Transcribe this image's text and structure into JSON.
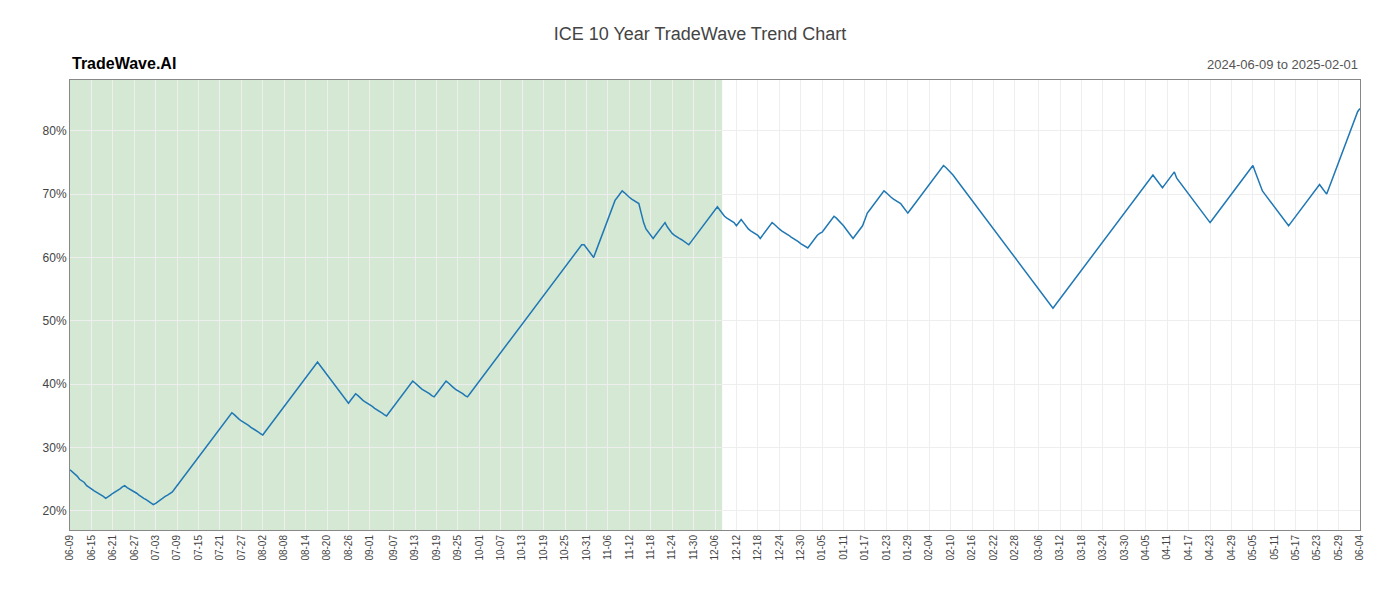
{
  "chart_data": {
    "type": "line",
    "title": "ICE 10 Year TradeWave Trend Chart",
    "subtitle": "2024-06-09 to 2025-02-01",
    "annotations": [
      {
        "text": "TradeWave.AI"
      }
    ],
    "color": "#1f77b4",
    "grid": true,
    "ylim": [
      17,
      88
    ],
    "yticks": [
      {
        "value": 20,
        "label": "20%"
      },
      {
        "value": 30,
        "label": "30%"
      },
      {
        "value": 40,
        "label": "40%"
      },
      {
        "value": 50,
        "label": "50%"
      },
      {
        "value": 60,
        "label": "60%"
      },
      {
        "value": 70,
        "label": "70%"
      },
      {
        "value": 80,
        "label": "80%"
      }
    ],
    "shaded_region": {
      "start": 0,
      "end": 274,
      "color": "#d4e8d4"
    },
    "categories": [
      "06-09",
      null,
      null,
      null,
      null,
      null,
      null,
      null,
      null,
      "06-15",
      null,
      null,
      null,
      null,
      null,
      null,
      null,
      null,
      "06-21",
      null,
      null,
      null,
      null,
      null,
      null,
      null,
      null,
      "06-27",
      null,
      null,
      null,
      null,
      null,
      null,
      null,
      null,
      "07-03",
      null,
      null,
      null,
      null,
      null,
      null,
      null,
      null,
      "07-09",
      null,
      null,
      null,
      null,
      null,
      null,
      null,
      null,
      "07-15",
      null,
      null,
      null,
      null,
      null,
      null,
      null,
      null,
      "07-21",
      null,
      null,
      null,
      null,
      null,
      null,
      null,
      null,
      "07-27",
      null,
      null,
      null,
      null,
      null,
      null,
      null,
      null,
      "08-02",
      null,
      null,
      null,
      null,
      null,
      null,
      null,
      null,
      "08-08",
      null,
      null,
      null,
      null,
      null,
      null,
      null,
      null,
      "08-14",
      null,
      null,
      null,
      null,
      null,
      null,
      null,
      null,
      "08-20",
      null,
      null,
      null,
      null,
      null,
      null,
      null,
      null,
      "08-26",
      null,
      null,
      null,
      null,
      null,
      null,
      null,
      null,
      "09-01",
      null,
      null,
      null,
      null,
      null,
      null,
      null,
      null,
      null,
      "09-07",
      null,
      null,
      null,
      null,
      null,
      null,
      null,
      null,
      "09-13",
      null,
      null,
      null,
      null,
      null,
      null,
      null,
      null,
      "09-19",
      null,
      null,
      null,
      null,
      null,
      null,
      null,
      null,
      "09-25",
      null,
      null,
      null,
      null,
      null,
      null,
      null,
      null,
      "10-01",
      null,
      null,
      null,
      null,
      null,
      null,
      null,
      null,
      "10-07",
      null,
      null,
      null,
      null,
      null,
      null,
      null,
      null,
      "10-13",
      null,
      null,
      null,
      null,
      null,
      null,
      null,
      null,
      "10-19",
      null,
      null,
      null,
      null,
      null,
      null,
      null,
      null,
      "10-25",
      null,
      null,
      null,
      null,
      null,
      null,
      null,
      null,
      "10-31",
      null,
      null,
      null,
      null,
      null,
      null,
      null,
      null,
      "11-06",
      null,
      null,
      null,
      null,
      null,
      null,
      null,
      null,
      "11-12",
      null,
      null,
      null,
      null,
      null,
      null,
      null,
      null,
      "11-18",
      null,
      null,
      null,
      null,
      null,
      null,
      null,
      null,
      "11-24",
      null,
      null,
      null,
      null,
      null,
      null,
      null,
      null,
      "11-30",
      null,
      null,
      null,
      null,
      null,
      null,
      null,
      null,
      "12-06",
      null,
      null,
      null,
      null,
      null,
      null,
      null,
      null,
      "12-12",
      null,
      null,
      null,
      null,
      null,
      null,
      null,
      null,
      "12-18",
      null,
      null,
      null,
      null,
      null,
      null,
      null,
      null,
      "12-24",
      null,
      null,
      null,
      null,
      null,
      null,
      null,
      null,
      "12-30",
      null,
      null,
      null,
      null,
      null,
      null,
      null,
      null,
      "01-05",
      null,
      null,
      null,
      null,
      null,
      null,
      null,
      null,
      "01-11",
      null,
      null,
      null,
      null,
      null,
      null,
      null,
      null,
      "01-17",
      null,
      null,
      null,
      null,
      null,
      null,
      null,
      null,
      "01-23",
      null,
      null,
      null,
      null,
      null,
      null,
      null,
      null,
      "01-29",
      null,
      null,
      null,
      null,
      null,
      null,
      null,
      null,
      "02-04",
      null,
      null,
      null,
      null,
      null,
      null,
      null,
      null,
      "02-10",
      null,
      null,
      null,
      null,
      null,
      null,
      null,
      null,
      "02-16",
      null,
      null,
      null,
      null,
      null,
      null,
      null,
      null,
      "02-22",
      null,
      null,
      null,
      null,
      null,
      null,
      null,
      null,
      "02-28",
      null,
      null,
      null,
      null,
      null,
      null,
      null,
      null,
      null,
      "03-06",
      null,
      null,
      null,
      null,
      null,
      null,
      null,
      null,
      "03-12",
      null,
      null,
      null,
      null,
      null,
      null,
      null,
      null,
      "03-18",
      null,
      null,
      null,
      null,
      null,
      null,
      null,
      null,
      "03-24",
      null,
      null,
      null,
      null,
      null,
      null,
      null,
      null,
      "03-30",
      null,
      null,
      null,
      null,
      null,
      null,
      null,
      null,
      "04-05",
      null,
      null,
      null,
      null,
      null,
      null,
      null,
      null,
      "04-11",
      null,
      null,
      null,
      null,
      null,
      null,
      null,
      null,
      "04-17",
      null,
      null,
      null,
      null,
      null,
      null,
      null,
      null,
      "04-23",
      null,
      null,
      null,
      null,
      null,
      null,
      null,
      null,
      "04-29",
      null,
      null,
      null,
      null,
      null,
      null,
      null,
      null,
      "05-05",
      null,
      null,
      null,
      null,
      null,
      null,
      null,
      null,
      "05-11",
      null,
      null,
      null,
      null,
      null,
      null,
      null,
      null,
      "05-17",
      null,
      null,
      null,
      null,
      null,
      null,
      null,
      null,
      "05-23",
      null,
      null,
      null,
      null,
      null,
      null,
      null,
      null,
      "05-29",
      null,
      null,
      null,
      null,
      null,
      null,
      null,
      null,
      "06-04"
    ],
    "values": [
      26.5,
      26.2,
      25.8,
      25.5,
      25.0,
      24.8,
      24.5,
      24.0,
      23.8,
      23.5,
      23.2,
      23.0,
      22.8,
      22.5,
      22.3,
      22.0,
      22.2,
      22.5,
      22.8,
      23.0,
      23.3,
      23.5,
      23.8,
      24.0,
      23.7,
      23.5,
      23.2,
      23.0,
      22.8,
      22.5,
      22.2,
      22.0,
      21.8,
      21.5,
      21.3,
      21.0,
      21.2,
      21.5,
      21.8,
      22.0,
      22.3,
      22.5,
      22.8,
      23.0,
      23.5,
      24.0,
      24.5,
      25.0,
      25.5,
      26.0,
      26.5,
      27.0,
      27.5,
      28.0,
      28.5,
      29.0,
      29.5,
      30.0,
      30.5,
      31.0,
      31.5,
      32.0,
      32.5,
      33.0,
      33.5,
      34.0,
      34.5,
      35.0,
      35.5,
      35.2,
      34.8,
      34.5,
      34.2,
      34.0,
      33.8,
      33.5,
      33.2,
      33.0,
      32.8,
      32.5,
      32.2,
      32.0,
      32.5,
      33.0,
      33.5,
      34.0,
      34.5,
      35.0,
      35.5,
      36.0,
      36.5,
      37.0,
      37.5,
      38.0,
      38.5,
      39.0,
      39.5,
      40.0,
      40.5,
      41.0,
      41.5,
      42.0,
      42.5,
      43.0,
      43.5,
      43.0,
      42.5,
      42.0,
      41.5,
      41.0,
      40.5,
      40.0,
      39.5,
      39.0,
      38.5,
      38.0,
      37.5,
      37.0,
      37.5,
      38.0,
      38.5,
      38.2,
      37.8,
      37.5,
      37.2,
      37.0,
      36.8,
      36.5,
      36.2,
      36.0,
      35.8,
      35.5,
      35.2,
      35.0,
      35.5,
      36.0,
      36.5,
      37.0,
      37.5,
      38.0,
      38.5,
      39.0,
      39.5,
      40.0,
      40.5,
      40.2,
      39.8,
      39.5,
      39.2,
      39.0,
      38.8,
      38.5,
      38.2,
      38.0,
      38.5,
      39.0,
      39.5,
      40.0,
      40.5,
      40.2,
      39.8,
      39.5,
      39.2,
      39.0,
      38.8,
      38.5,
      38.2,
      38.0,
      38.5,
      39.0,
      39.5,
      40.0,
      40.5,
      41.0,
      41.5,
      42.0,
      42.5,
      43.0,
      43.5,
      44.0,
      44.5,
      45.0,
      45.5,
      46.0,
      46.5,
      47.0,
      47.5,
      48.0,
      48.5,
      49.0,
      49.5,
      50.0,
      50.5,
      51.0,
      51.5,
      52.0,
      52.5,
      53.0,
      53.5,
      54.0,
      54.5,
      55.0,
      55.5,
      56.0,
      56.5,
      57.0,
      57.5,
      58.0,
      58.5,
      59.0,
      59.5,
      60.0,
      60.5,
      61.0,
      61.5,
      62.0,
      62.0,
      61.5,
      61.0,
      60.5,
      60.0,
      61.0,
      62.0,
      63.0,
      64.0,
      65.0,
      66.0,
      67.0,
      68.0,
      69.0,
      69.5,
      70.0,
      70.5,
      70.2,
      69.8,
      69.5,
      69.2,
      69.0,
      68.8,
      68.5,
      67.0,
      65.5,
      64.5,
      64.0,
      63.5,
      63.0,
      63.5,
      64.0,
      64.5,
      65.0,
      65.5,
      64.8,
      64.2,
      63.8,
      63.5,
      63.2,
      63.0,
      62.8,
      62.5,
      62.2,
      62.0,
      62.5,
      63.0,
      63.5,
      64.0,
      64.5,
      65.0,
      65.5,
      66.0,
      66.5,
      67.0,
      67.5,
      68.0,
      67.5,
      67.0,
      66.5,
      66.2,
      66.0,
      65.8,
      65.5,
      65.0,
      65.5,
      66.0,
      65.5,
      65.0,
      64.5,
      64.2,
      64.0,
      63.8,
      63.5,
      63.0,
      63.5,
      64.0,
      64.5,
      65.0,
      65.5,
      65.2,
      64.8,
      64.5,
      64.2,
      64.0,
      63.8,
      63.5,
      63.2,
      63.0,
      62.8,
      62.5,
      62.2,
      62.0,
      61.8,
      61.5,
      62.0,
      62.5,
      63.0,
      63.5,
      63.8,
      64.0,
      64.5,
      65.0,
      65.5,
      66.0,
      66.5,
      66.2,
      65.8,
      65.5,
      65.0,
      64.5,
      64.0,
      63.5,
      63.0,
      63.5,
      64.0,
      64.5,
      65.0,
      66.0,
      67.0,
      67.5,
      68.0,
      68.5,
      69.0,
      69.5,
      70.0,
      70.5,
      70.2,
      69.8,
      69.5,
      69.2,
      69.0,
      68.8,
      68.5,
      68.0,
      67.5,
      67.0,
      67.5,
      68.0,
      68.5,
      69.0,
      69.5,
      70.0,
      70.5,
      71.0,
      71.5,
      72.0,
      72.5,
      73.0,
      73.5,
      74.0,
      74.5,
      74.2,
      73.8,
      73.5,
      73.0,
      72.5,
      72.0,
      71.5,
      71.0,
      70.5,
      70.0,
      69.5,
      69.0,
      68.5,
      68.0,
      67.5,
      67.0,
      66.5,
      66.0,
      65.5,
      65.0,
      64.5,
      64.0,
      63.5,
      63.0,
      62.5,
      62.0,
      61.5,
      61.0,
      60.5,
      60.0,
      59.5,
      59.0,
      58.5,
      58.0,
      57.5,
      57.0,
      56.5,
      56.0,
      55.5,
      55.0,
      54.5,
      54.0,
      53.5,
      53.0,
      52.5,
      52.0,
      52.5,
      53.0,
      53.5,
      54.0,
      54.5,
      55.0,
      55.5,
      56.0,
      56.5,
      57.0,
      57.5,
      58.0,
      58.5,
      59.0,
      59.5,
      60.0,
      60.5,
      61.0,
      61.5,
      62.0,
      62.5,
      63.0,
      63.5,
      64.0,
      64.5,
      65.0,
      65.5,
      66.0,
      66.5,
      67.0,
      67.5,
      68.0,
      68.5,
      69.0,
      69.5,
      70.0,
      70.5,
      71.0,
      71.5,
      72.0,
      72.5,
      73.0,
      72.5,
      72.0,
      71.5,
      71.0,
      71.5,
      72.0,
      72.5,
      73.0,
      73.5,
      72.5,
      72.0,
      71.5,
      71.0,
      70.5,
      70.0,
      69.5,
      69.0,
      68.5,
      68.0,
      67.5,
      67.0,
      66.5,
      66.0,
      65.5,
      66.0,
      66.5,
      67.0,
      67.5,
      68.0,
      68.5,
      69.0,
      69.5,
      70.0,
      70.5,
      71.0,
      71.5,
      72.0,
      72.5,
      73.0,
      73.5,
      74.0,
      74.5,
      73.5,
      72.5,
      71.5,
      70.5,
      70.0,
      69.5,
      69.0,
      68.5,
      68.0,
      67.5,
      67.0,
      66.5,
      66.0,
      65.5,
      65.0,
      65.5,
      66.0,
      66.5,
      67.0,
      67.5,
      68.0,
      68.5,
      69.0,
      69.5,
      70.0,
      70.5,
      71.0,
      71.5,
      71.0,
      70.5,
      70.0,
      71.0,
      72.0,
      73.0,
      74.0,
      75.0,
      76.0,
      77.0,
      78.0,
      79.0,
      80.0,
      81.0,
      82.0,
      83.0,
      83.5
    ]
  }
}
